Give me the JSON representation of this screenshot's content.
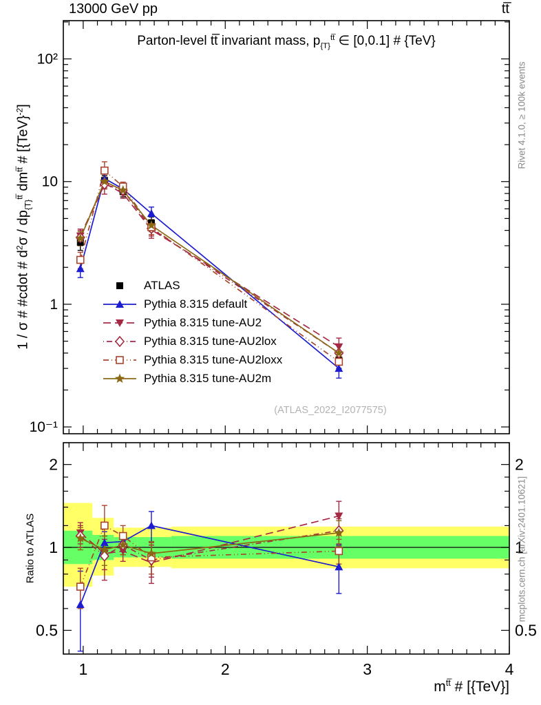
{
  "header": {
    "left": "13000 GeV pp",
    "right": "tt̅"
  },
  "side_notes": {
    "top_right": "Rivet 4.1.0, ≥ 100k events",
    "bottom_right": "mcplots.cern.ch [arXiv:2401.10621]"
  },
  "watermark": "(ATLAS_2022_I2077575)",
  "chart_data": {
    "type": "line",
    "title": {
      "pre": "Parton-level tt̅ invariant mass, p",
      "sub": "{T}",
      "sup": "tt̅",
      "post": " ∈ [0,0.1] # {TeV}"
    },
    "ylabel": {
      "p1": "1 / σ # #cdot # d",
      "sup1": "2",
      "p2": "σ / dp",
      "sub1": "{T}",
      "sup2": "tt̅",
      "p3": " dm",
      "sup3": "tt̅",
      "p4": " # [{TeV}",
      "sup4": "-2",
      "p5": "]"
    },
    "ratio_ylabel": "Ratio to ATLAS",
    "xlabel": {
      "p1": "m",
      "sup": "tt̅",
      "p2": " # [{TeV}]"
    },
    "x": [
      0.98,
      1.15,
      1.28,
      1.48,
      2.8
    ],
    "x_range": [
      0.86,
      4.0
    ],
    "x_minor_step": 0.1,
    "x_ticks": [
      {
        "v": 1,
        "label": "1"
      },
      {
        "v": 2,
        "label": "2"
      },
      {
        "v": 3,
        "label": "3"
      },
      {
        "v": 4,
        "label": "4"
      }
    ],
    "main": {
      "y_range": [
        0.088,
        205
      ],
      "y_ticks": [
        {
          "v": 0.1,
          "label": "10⁻¹"
        },
        {
          "v": 1,
          "label": "1"
        },
        {
          "v": 10,
          "label": "10"
        },
        {
          "v": 100,
          "label": "10²"
        }
      ]
    },
    "ratio": {
      "y_range": [
        0.41,
        2.4
      ],
      "y_ticks": [
        {
          "v": 0.5,
          "label": "0.5"
        },
        {
          "v": 1,
          "label": "1"
        },
        {
          "v": 2,
          "label": "2"
        }
      ],
      "y_minor": [
        0.6,
        0.7,
        0.8,
        0.9,
        1.2,
        1.4,
        1.6,
        1.8
      ],
      "unity_line_color": "#1a1a1a",
      "bands": [
        {
          "x0": 0.86,
          "x1": 1.065,
          "yellow": [
            0.72,
            1.45
          ],
          "green": [
            0.87,
            1.15
          ]
        },
        {
          "x0": 1.065,
          "x1": 1.215,
          "yellow": [
            0.79,
            1.28
          ],
          "green": [
            0.9,
            1.11
          ]
        },
        {
          "x0": 1.215,
          "x1": 1.38,
          "yellow": [
            0.85,
            1.18
          ],
          "green": [
            0.92,
            1.09
          ]
        },
        {
          "x0": 1.38,
          "x1": 1.62,
          "yellow": [
            0.85,
            1.18
          ],
          "green": [
            0.92,
            1.09
          ]
        },
        {
          "x0": 1.62,
          "x1": 4.0,
          "yellow": [
            0.84,
            1.19
          ],
          "green": [
            0.91,
            1.1
          ]
        }
      ]
    },
    "band_colors": {
      "yellow": "#ffff66",
      "green": "#66ff66"
    },
    "series": [
      {
        "name": "ATLAS",
        "color": "#000000",
        "marker": "square-filled",
        "line": "none",
        "main": {
          "values": [
            3.2,
            10.2,
            8.3,
            4.6,
            0.35
          ],
          "errs": [
            0.45,
            1.0,
            0.8,
            0.55,
            0.05
          ]
        }
      },
      {
        "name": "Pythia 8.315 default",
        "color": "#1c1cd0",
        "marker": "triangle-up-filled",
        "line": "solid",
        "main": {
          "values": [
            1.95,
            10.6,
            8.7,
            5.5,
            0.3
          ],
          "errs": [
            0.3,
            0.9,
            0.6,
            0.7,
            0.05
          ]
        },
        "ratio": {
          "values": [
            0.62,
            1.04,
            1.05,
            1.2,
            0.85
          ],
          "errs": [
            0.2,
            0.1,
            0.08,
            0.15,
            0.17
          ]
        }
      },
      {
        "name": "Pythia 8.315 tune-AU2",
        "color": "#a42a44",
        "marker": "triangle-down-filled",
        "line": "dash",
        "main": {
          "values": [
            3.6,
            9.7,
            8.0,
            4.05,
            0.45
          ],
          "errs": [
            0.5,
            1.0,
            0.7,
            0.6,
            0.08
          ]
        },
        "ratio": {
          "values": [
            1.13,
            0.95,
            0.97,
            0.88,
            1.3
          ],
          "errs": [
            0.1,
            0.12,
            0.08,
            0.14,
            0.17
          ]
        }
      },
      {
        "name": "Pythia 8.315 tune-AU2lox",
        "color": "#a42a44",
        "marker": "diamond-open",
        "line": "dashdot",
        "main": {
          "values": [
            3.5,
            9.5,
            8.5,
            4.15,
            0.4
          ],
          "errs": [
            0.5,
            1.6,
            0.7,
            0.55,
            0.06
          ]
        },
        "ratio": {
          "values": [
            1.1,
            0.93,
            1.02,
            0.9,
            1.15
          ],
          "errs": [
            0.1,
            0.17,
            0.08,
            0.12,
            0.12
          ]
        }
      },
      {
        "name": "Pythia 8.315 tune-AU2loxx",
        "color": "#a8442c",
        "marker": "square-open",
        "line": "dashdotdot",
        "main": {
          "values": [
            2.3,
            12.3,
            9.1,
            4.25,
            0.34
          ],
          "errs": [
            0.35,
            2.2,
            0.8,
            0.55,
            0.05
          ]
        },
        "ratio": {
          "values": [
            0.72,
            1.2,
            1.1,
            0.92,
            0.97
          ],
          "errs": [
            0.12,
            0.22,
            0.1,
            0.12,
            0.1
          ]
        }
      },
      {
        "name": "Pythia 8.315 tune-AU2m",
        "color": "#8b6914",
        "marker": "star-filled",
        "line": "solid",
        "main": {
          "values": [
            3.45,
            10.0,
            8.5,
            4.4,
            0.4
          ],
          "errs": [
            0.45,
            1.1,
            0.7,
            0.5,
            0.06
          ]
        },
        "ratio": {
          "values": [
            1.08,
            0.98,
            1.02,
            0.95,
            1.13
          ],
          "errs": [
            0.1,
            0.12,
            0.08,
            0.1,
            0.12
          ]
        }
      }
    ]
  }
}
